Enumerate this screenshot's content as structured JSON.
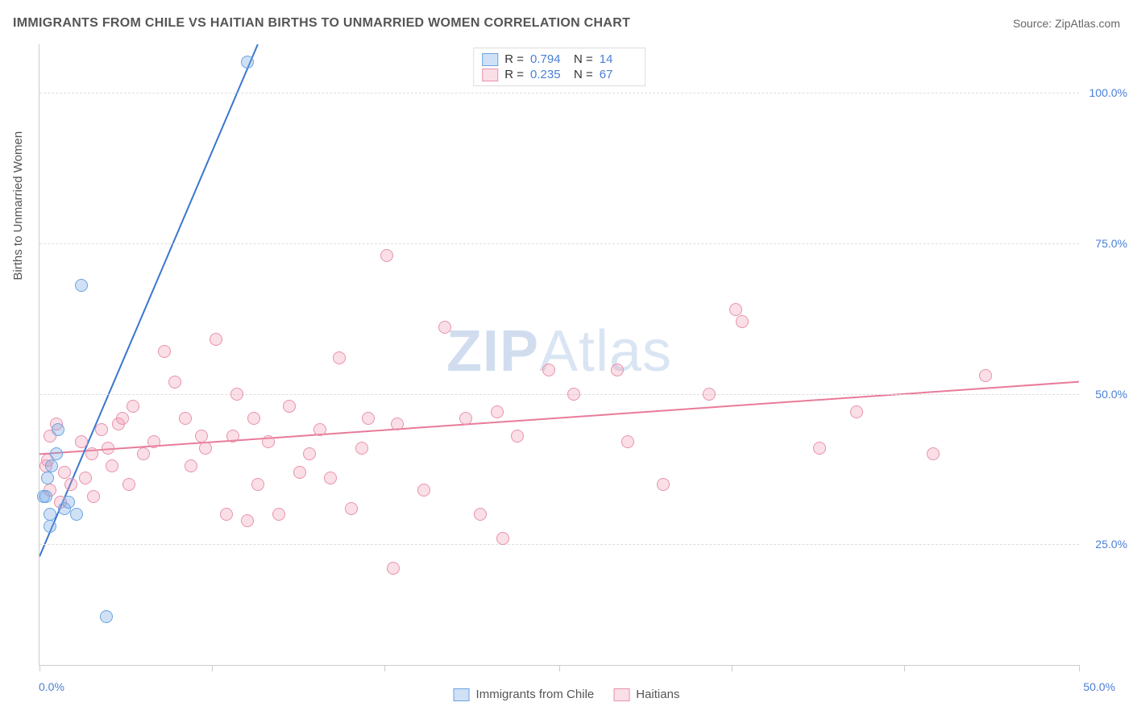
{
  "title": "IMMIGRANTS FROM CHILE VS HAITIAN BIRTHS TO UNMARRIED WOMEN CORRELATION CHART",
  "source_label": "Source: ",
  "source_name": "ZipAtlas.com",
  "ylabel": "Births to Unmarried Women",
  "watermark_a": "ZIP",
  "watermark_b": "Atlas",
  "chart": {
    "type": "scatter",
    "xlim": [
      0,
      50
    ],
    "ylim": [
      5,
      108
    ],
    "x_domain_pct": true,
    "y_domain_pct": true,
    "background_color": "#ffffff",
    "grid_color": "#dddddd",
    "grid_dash": true,
    "axis_color": "#cccccc",
    "tick_label_color": "#4a7fd6",
    "xtick_positions": [
      0,
      8.3,
      16.6,
      25,
      33.3,
      41.6,
      50
    ],
    "xtick_labels": {
      "0": "0.0%",
      "50": "50.0%"
    },
    "ytick_positions": [
      25,
      50,
      75,
      100
    ],
    "ytick_labels": {
      "25": "25.0%",
      "50": "50.0%",
      "75": "75.0%",
      "100": "100.0%"
    },
    "marker_radius": 8,
    "marker_border_width": 1.5,
    "line_width": 2
  },
  "series": [
    {
      "id": "chile",
      "label": "Immigrants from Chile",
      "color_fill": "rgba(120,170,230,0.35)",
      "color_stroke": "#6aa3e0",
      "line_color": "#3a76d0",
      "stats": {
        "R": "0.794",
        "N": "14"
      },
      "trend": {
        "x1": 0,
        "y1": 23,
        "x2": 10.5,
        "y2": 108
      },
      "points": [
        [
          0.2,
          33
        ],
        [
          0.3,
          33
        ],
        [
          0.4,
          36
        ],
        [
          0.5,
          30
        ],
        [
          0.5,
          28
        ],
        [
          0.6,
          38
        ],
        [
          0.8,
          40
        ],
        [
          0.9,
          44
        ],
        [
          1.2,
          31
        ],
        [
          1.4,
          32
        ],
        [
          1.8,
          30
        ],
        [
          2.0,
          68
        ],
        [
          3.2,
          13
        ],
        [
          10.0,
          105
        ]
      ]
    },
    {
      "id": "haitians",
      "label": "Haitians",
      "color_fill": "rgba(240,150,175,0.3)",
      "color_stroke": "#e892ab",
      "line_color": "#e87b9a",
      "stats": {
        "R": "0.235",
        "N": "67"
      },
      "trend": {
        "x1": 0,
        "y1": 40,
        "x2": 50,
        "y2": 52
      },
      "points": [
        [
          0.3,
          38
        ],
        [
          0.4,
          39
        ],
        [
          0.5,
          34
        ],
        [
          0.5,
          43
        ],
        [
          0.8,
          45
        ],
        [
          1.0,
          32
        ],
        [
          1.2,
          37
        ],
        [
          1.5,
          35
        ],
        [
          2.0,
          42
        ],
        [
          2.2,
          36
        ],
        [
          2.5,
          40
        ],
        [
          2.6,
          33
        ],
        [
          3.0,
          44
        ],
        [
          3.3,
          41
        ],
        [
          3.5,
          38
        ],
        [
          3.8,
          45
        ],
        [
          4.0,
          46
        ],
        [
          4.3,
          35
        ],
        [
          4.5,
          48
        ],
        [
          5.0,
          40
        ],
        [
          5.5,
          42
        ],
        [
          6.0,
          57
        ],
        [
          6.5,
          52
        ],
        [
          7.0,
          46
        ],
        [
          7.3,
          38
        ],
        [
          7.8,
          43
        ],
        [
          8.0,
          41
        ],
        [
          8.5,
          59
        ],
        [
          9.0,
          30
        ],
        [
          9.3,
          43
        ],
        [
          9.5,
          50
        ],
        [
          10.0,
          29
        ],
        [
          10.3,
          46
        ],
        [
          10.5,
          35
        ],
        [
          11.0,
          42
        ],
        [
          11.5,
          30
        ],
        [
          12.0,
          48
        ],
        [
          12.5,
          37
        ],
        [
          13.0,
          40
        ],
        [
          13.5,
          44
        ],
        [
          14.0,
          36
        ],
        [
          14.4,
          56
        ],
        [
          15.0,
          31
        ],
        [
          15.5,
          41
        ],
        [
          15.8,
          46
        ],
        [
          16.7,
          73
        ],
        [
          17.0,
          21
        ],
        [
          17.2,
          45
        ],
        [
          18.5,
          34
        ],
        [
          19.5,
          61
        ],
        [
          20.5,
          46
        ],
        [
          21.2,
          30
        ],
        [
          22.0,
          47
        ],
        [
          22.3,
          26
        ],
        [
          23.0,
          43
        ],
        [
          24.5,
          54
        ],
        [
          25.7,
          50
        ],
        [
          27.8,
          54
        ],
        [
          28.3,
          42
        ],
        [
          30.0,
          35
        ],
        [
          32.2,
          50
        ],
        [
          33.5,
          64
        ],
        [
          33.8,
          62
        ],
        [
          37.5,
          41
        ],
        [
          39.3,
          47
        ],
        [
          43.0,
          40
        ],
        [
          45.5,
          53
        ]
      ]
    }
  ],
  "legend_top": {
    "r_label": "R =",
    "n_label": "N ="
  },
  "legend_bottom_label_a": "Immigrants from Chile",
  "legend_bottom_label_b": "Haitians"
}
